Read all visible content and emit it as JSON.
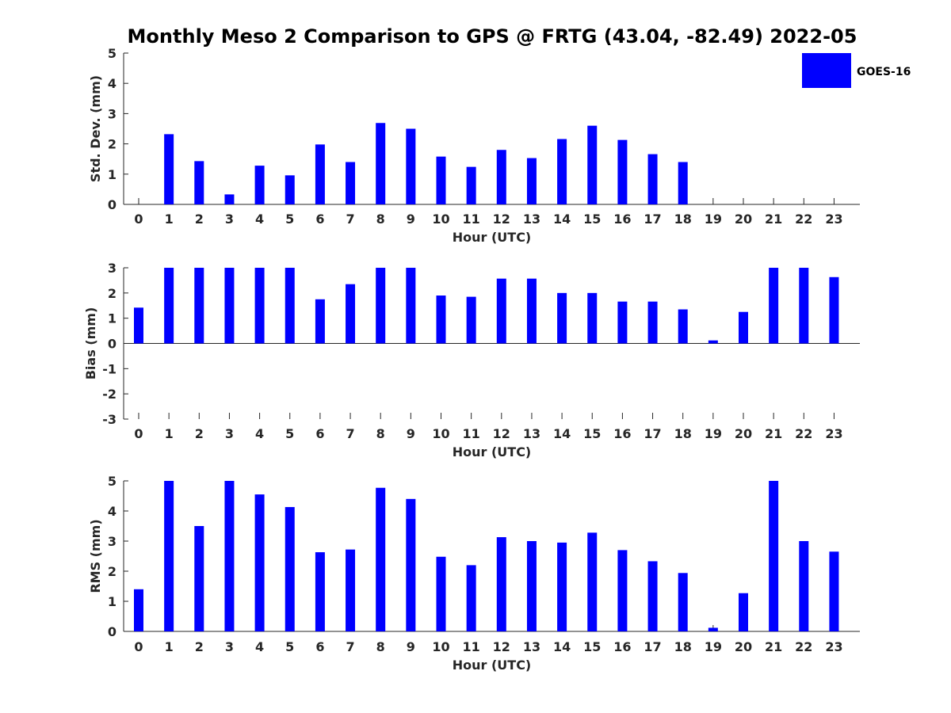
{
  "title": "Monthly Meso 2 Comparison to GPS @ FRTG (43.04, -82.49) 2022-05",
  "legend": {
    "label": "GOES-16",
    "color": "#0000ff",
    "placement": "top-right"
  },
  "chart_data": [
    {
      "type": "bar",
      "ylabel": "Std. Dev. (mm)",
      "xlabel": "Hour (UTC)",
      "categories": [
        "0",
        "1",
        "2",
        "3",
        "4",
        "5",
        "6",
        "7",
        "8",
        "9",
        "10",
        "11",
        "12",
        "13",
        "14",
        "15",
        "16",
        "17",
        "18",
        "19",
        "20",
        "21",
        "22",
        "23"
      ],
      "series": [
        {
          "name": "GOES-16",
          "values": [
            null,
            2.32,
            1.43,
            0.33,
            1.28,
            0.96,
            1.98,
            1.4,
            2.69,
            2.5,
            1.58,
            1.24,
            1.8,
            1.53,
            2.16,
            2.6,
            2.13,
            1.66,
            1.4,
            null,
            null,
            null,
            null,
            null
          ]
        }
      ],
      "ylim": [
        0,
        5
      ],
      "yticks": [
        0,
        1,
        2,
        3,
        4,
        5
      ],
      "grid": false
    },
    {
      "type": "bar",
      "ylabel": "Bias (mm)",
      "xlabel": "Hour (UTC)",
      "categories": [
        "0",
        "1",
        "2",
        "3",
        "4",
        "5",
        "6",
        "7",
        "8",
        "9",
        "10",
        "11",
        "12",
        "13",
        "14",
        "15",
        "16",
        "17",
        "18",
        "19",
        "20",
        "21",
        "22",
        "23"
      ],
      "series": [
        {
          "name": "GOES-16",
          "values": [
            1.42,
            3.0,
            3.0,
            3.0,
            3.0,
            3.0,
            1.75,
            2.35,
            3.0,
            3.0,
            1.9,
            1.85,
            2.57,
            2.57,
            2.0,
            2.0,
            1.66,
            1.66,
            1.35,
            0.12,
            1.25,
            3.0,
            3.0,
            2.63
          ]
        }
      ],
      "ylim": [
        -3,
        3
      ],
      "yticks": [
        -3,
        -2,
        -1,
        0,
        1,
        2,
        3
      ],
      "grid": false
    },
    {
      "type": "bar",
      "ylabel": "RMS (mm)",
      "xlabel": "Hour (UTC)",
      "categories": [
        "0",
        "1",
        "2",
        "3",
        "4",
        "5",
        "6",
        "7",
        "8",
        "9",
        "10",
        "11",
        "12",
        "13",
        "14",
        "15",
        "16",
        "17",
        "18",
        "19",
        "20",
        "21",
        "22",
        "23"
      ],
      "series": [
        {
          "name": "GOES-16",
          "values": [
            1.4,
            5.0,
            3.5,
            5.0,
            4.55,
            4.13,
            2.63,
            2.72,
            4.77,
            4.4,
            2.48,
            2.2,
            3.13,
            3.0,
            2.95,
            3.28,
            2.7,
            2.33,
            1.94,
            0.12,
            1.27,
            5.0,
            3.0,
            2.65
          ]
        }
      ],
      "ylim": [
        0,
        5
      ],
      "yticks": [
        0,
        1,
        2,
        3,
        4,
        5
      ],
      "grid": false
    }
  ]
}
